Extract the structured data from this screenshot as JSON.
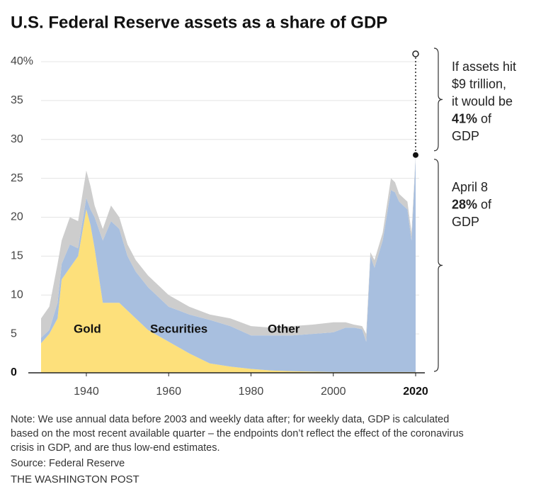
{
  "chart_data": {
    "type": "stacked-area",
    "title": "U.S. Federal Reserve assets as a share of GDP",
    "x": [
      1929,
      1931,
      1933,
      1934,
      1936,
      1938,
      1940,
      1941,
      1942,
      1944,
      1946,
      1948,
      1950,
      1952,
      1955,
      1960,
      1965,
      1970,
      1975,
      1980,
      1985,
      1990,
      1995,
      2000,
      2003,
      2005,
      2007,
      2008,
      2009,
      2010,
      2012,
      2014,
      2015,
      2016,
      2018,
      2019,
      2020
    ],
    "series": [
      {
        "name": "Gold",
        "color": "#fde07b",
        "values": [
          3.8,
          5,
          7,
          12,
          13.5,
          15,
          21,
          19,
          16,
          9,
          9,
          9,
          8,
          7,
          5.5,
          4,
          2.5,
          1.2,
          0.8,
          0.5,
          0.3,
          0.2,
          0.15,
          0.1,
          0.1,
          0.1,
          0.1,
          0.1,
          0.1,
          0.1,
          0.1,
          0.1,
          0.1,
          0.1,
          0.1,
          0.1,
          0.1
        ]
      },
      {
        "name": "Securities",
        "color": "#a8bfdf",
        "values": [
          0.7,
          0.5,
          2,
          2,
          3,
          1,
          1.5,
          2,
          4,
          8,
          10.5,
          9.5,
          7,
          6,
          5.5,
          4.5,
          5,
          5.6,
          5.2,
          4.3,
          4.5,
          4.6,
          4.85,
          5.1,
          5.7,
          5.7,
          5.5,
          3.9,
          14.9,
          13.4,
          16.9,
          23.4,
          23.1,
          21.9,
          20.9,
          16.9,
          27.5
        ]
      },
      {
        "name": "Other",
        "color": "#cdcdcd",
        "values": [
          2.5,
          3,
          5,
          3,
          3.5,
          3.5,
          3.5,
          3,
          1.5,
          1.5,
          2,
          1.5,
          1.5,
          1.5,
          1.5,
          1.5,
          1,
          0.7,
          1,
          1.2,
          1,
          1.2,
          1.2,
          1.3,
          0.7,
          0.4,
          0.4,
          1,
          0.5,
          1,
          1,
          1.5,
          1.3,
          1,
          1,
          1,
          0.4
        ]
      }
    ],
    "xlim": [
      1929,
      2020
    ],
    "xticks": [
      1940,
      1960,
      1980,
      2000,
      2020
    ],
    "ylim": [
      0,
      40
    ],
    "yticks": [
      0,
      5,
      10,
      15,
      20,
      25,
      30,
      35,
      {
        "value": 40,
        "label": "40%"
      }
    ],
    "grid": true,
    "annotations": [
      {
        "value": 41,
        "lines": [
          [
            {
              "text": "If assets hit"
            }
          ],
          [
            {
              "text": "$9 trillion,"
            }
          ],
          [
            {
              "text": "it would be"
            }
          ],
          [
            {
              "text": "41%",
              "bold": true
            },
            {
              "text": " of"
            }
          ],
          [
            {
              "text": "GDP"
            }
          ]
        ]
      },
      {
        "value": 28,
        "lines": [
          [
            {
              "text": "April 8"
            }
          ],
          [
            {
              "text": "28%",
              "bold": true
            },
            {
              "text": " of"
            }
          ],
          [
            {
              "text": "GDP"
            }
          ]
        ]
      }
    ],
    "notes": [
      "Note: We use annual data before 2003 and weekly data after; for weekly data, GDP is calculated",
      "based on the most recent available quarter – the endpoints don’t reflect the effect of the coronavirus",
      "crisis in GDP, and are thus low-end estimates."
    ],
    "source": "Source: Federal Reserve",
    "credit": "THE WASHINGTON POST"
  }
}
